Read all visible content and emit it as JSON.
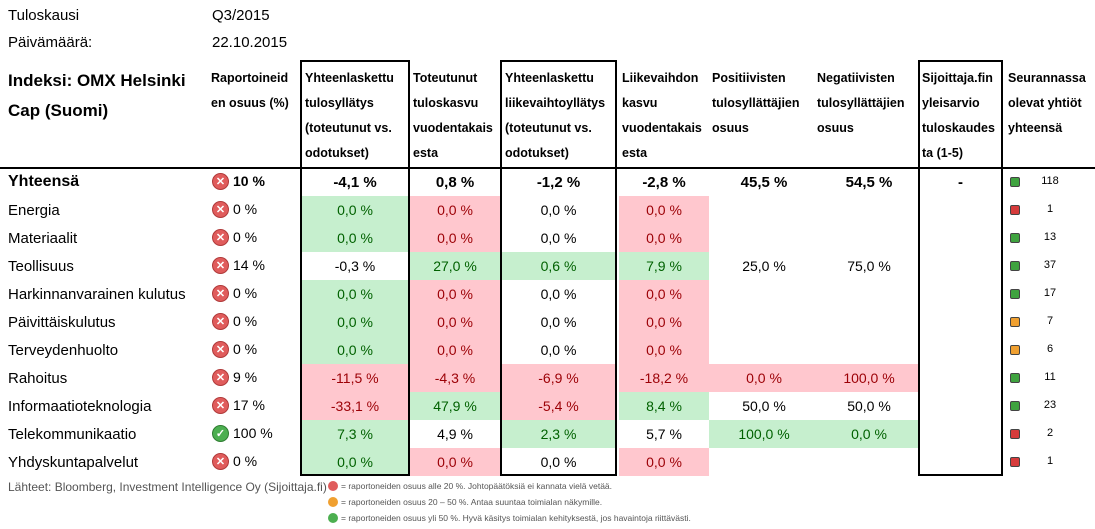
{
  "meta": {
    "period_label": "Tuloskausi",
    "period_value": "Q3/2015",
    "date_label": "Päivämäärä:",
    "date_value": "22.10.2015"
  },
  "index_title": [
    "Indeksi: OMX Helsinki",
    "Cap (Suomi)"
  ],
  "headers": [
    [
      "Raportoineid",
      "en osuus (%)"
    ],
    [
      "Yhteenlaskettu",
      "tulosyllätys",
      "(toteutunut vs.",
      "odotukset)"
    ],
    [
      "Toteutunut",
      "tuloskasvu",
      "vuodentakais",
      "esta"
    ],
    [
      "Yhteenlaskettu",
      "liikevaihtoyllätys",
      "(toteutunut vs.",
      "odotukset)"
    ],
    [
      "Liikevaihdon",
      "kasvu",
      "vuodentakais",
      "esta"
    ],
    [
      "Positiivisten",
      "tulosyllättäjien",
      "osuus"
    ],
    [
      "Negatiivisten",
      "tulosyllättäjien",
      "osuus"
    ],
    [
      "Sijoittaja.fin",
      "yleisarvio",
      "tuloskaudes",
      "ta (1-5)"
    ],
    [
      "Seurannassa",
      "olevat yhtiöt",
      "yhteensä"
    ]
  ],
  "rows": [
    {
      "name": "Yhteensä",
      "status": "red",
      "reported": "10 %",
      "eps": "-4,1 %",
      "eps_c": "",
      "growth": "0,8 %",
      "growth_c": "",
      "rev": "-1,2 %",
      "rev_c": "",
      "revg": "-2,8 %",
      "revg_c": "",
      "pos": "45,5 %",
      "pos_c": "",
      "neg": "54,5 %",
      "neg_c": "",
      "score": "-",
      "count": "118",
      "count_c": "green"
    },
    {
      "name": "Energia",
      "status": "red",
      "reported": "0 %",
      "eps": "0,0 %",
      "eps_c": "pos",
      "growth": "0,0 %",
      "growth_c": "neg",
      "rev": "0,0 %",
      "rev_c": "",
      "revg": "0,0 %",
      "revg_c": "neg",
      "pos": "",
      "pos_c": "",
      "neg": "",
      "neg_c": "",
      "score": "",
      "count": "1",
      "count_c": "red"
    },
    {
      "name": "Materiaalit",
      "status": "red",
      "reported": "0 %",
      "eps": "0,0 %",
      "eps_c": "pos",
      "growth": "0,0 %",
      "growth_c": "neg",
      "rev": "0,0 %",
      "rev_c": "",
      "revg": "0,0 %",
      "revg_c": "neg",
      "pos": "",
      "pos_c": "",
      "neg": "",
      "neg_c": "",
      "score": "",
      "count": "13",
      "count_c": "green"
    },
    {
      "name": "Teollisuus",
      "status": "red",
      "reported": "14 %",
      "eps": "-0,3 %",
      "eps_c": "",
      "growth": "27,0 %",
      "growth_c": "pos",
      "rev": "0,6 %",
      "rev_c": "pos",
      "revg": "7,9 %",
      "revg_c": "pos",
      "pos": "25,0 %",
      "pos_c": "",
      "neg": "75,0 %",
      "neg_c": "",
      "score": "",
      "count": "37",
      "count_c": "green"
    },
    {
      "name": "Harkinnanvarainen kulutus",
      "status": "red",
      "reported": "0 %",
      "eps": "0,0 %",
      "eps_c": "pos",
      "growth": "0,0 %",
      "growth_c": "neg",
      "rev": "0,0 %",
      "rev_c": "",
      "revg": "0,0 %",
      "revg_c": "neg",
      "pos": "",
      "pos_c": "",
      "neg": "",
      "neg_c": "",
      "score": "",
      "count": "17",
      "count_c": "green"
    },
    {
      "name": "Päivittäiskulutus",
      "status": "red",
      "reported": "0 %",
      "eps": "0,0 %",
      "eps_c": "pos",
      "growth": "0,0 %",
      "growth_c": "neg",
      "rev": "0,0 %",
      "rev_c": "",
      "revg": "0,0 %",
      "revg_c": "neg",
      "pos": "",
      "pos_c": "",
      "neg": "",
      "neg_c": "",
      "score": "",
      "count": "7",
      "count_c": "orange"
    },
    {
      "name": "Terveydenhuolto",
      "status": "red",
      "reported": "0 %",
      "eps": "0,0 %",
      "eps_c": "pos",
      "growth": "0,0 %",
      "growth_c": "neg",
      "rev": "0,0 %",
      "rev_c": "",
      "revg": "0,0 %",
      "revg_c": "neg",
      "pos": "",
      "pos_c": "",
      "neg": "",
      "neg_c": "",
      "score": "",
      "count": "6",
      "count_c": "orange"
    },
    {
      "name": "Rahoitus",
      "status": "red",
      "reported": "9 %",
      "eps": "-11,5 %",
      "eps_c": "neg",
      "growth": "-4,3 %",
      "growth_c": "neg",
      "rev": "-6,9 %",
      "rev_c": "neg",
      "revg": "-18,2 %",
      "revg_c": "neg",
      "pos": "0,0 %",
      "pos_c": "neg",
      "neg": "100,0 %",
      "neg_c": "neg",
      "score": "",
      "count": "11",
      "count_c": "green"
    },
    {
      "name": "Informaatioteknologia",
      "status": "red",
      "reported": "17 %",
      "eps": "-33,1 %",
      "eps_c": "neg",
      "growth": "47,9 %",
      "growth_c": "pos",
      "rev": "-5,4 %",
      "rev_c": "neg",
      "revg": "8,4 %",
      "revg_c": "pos",
      "pos": "50,0 %",
      "pos_c": "",
      "neg": "50,0 %",
      "neg_c": "",
      "score": "",
      "count": "23",
      "count_c": "green"
    },
    {
      "name": "Telekommunikaatio",
      "status": "green",
      "reported": "100 %",
      "eps": "7,3 %",
      "eps_c": "pos",
      "growth": "4,9 %",
      "growth_c": "",
      "rev": "2,3 %",
      "rev_c": "pos",
      "revg": "5,7 %",
      "revg_c": "",
      "pos": "100,0 %",
      "pos_c": "pos",
      "neg": "0,0 %",
      "neg_c": "pos",
      "score": "",
      "count": "2",
      "count_c": "red"
    },
    {
      "name": "Yhdyskuntapalvelut",
      "status": "red",
      "reported": "0 %",
      "eps": "0,0 %",
      "eps_c": "pos",
      "growth": "0,0 %",
      "growth_c": "neg",
      "rev": "0,0 %",
      "rev_c": "",
      "revg": "0,0 %",
      "revg_c": "neg",
      "pos": "",
      "pos_c": "",
      "neg": "",
      "neg_c": "",
      "score": "",
      "count": "1",
      "count_c": "red"
    }
  ],
  "source": "Lähteet: Bloomberg, Investment Intelligence Oy (Sijoittaja.fi)",
  "legend": [
    {
      "color": "red",
      "text": "= raportoneiden osuus alle 20 %. Johtopäätöksiä ei kannata vielä vetää."
    },
    {
      "color": "orange",
      "text": "= raportoneiden osuus 20 – 50 %. Antaa suuntaa toimialan näkymille."
    },
    {
      "color": "green",
      "text": "= raportoneiden osuus yli 50 %. Hyvä käsitys toimialan kehityksestä, jos havaintoja riittävästi."
    }
  ],
  "colors": {
    "pos_bg": "#c6efce",
    "pos_fg": "#006100",
    "neg_bg": "#ffc7ce",
    "neg_fg": "#9c0006"
  }
}
